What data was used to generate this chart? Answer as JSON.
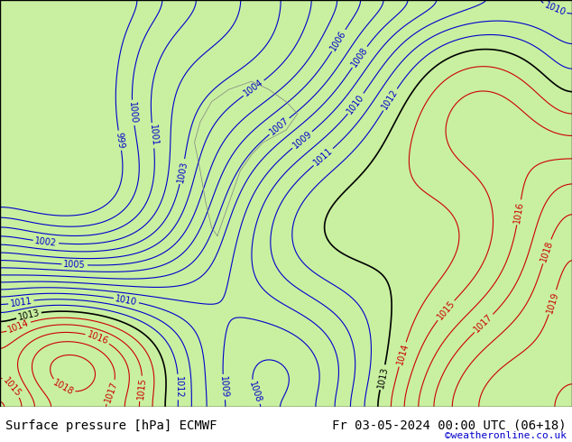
{
  "title_left": "Surface pressure [hPa] ECMWF",
  "title_right": "Fr 03-05-2024 00:00 UTC (06+18)",
  "credit": "©weatheronline.co.uk",
  "bg_color": "#c8f0a0",
  "land_color": "#c8f0a0",
  "sea_color": "#d0e8f8",
  "text_color_blue": "#0000cc",
  "text_color_red": "#cc0000",
  "text_color_black": "#000000",
  "bottom_bar_color": "#ffffff",
  "font_size_label": 9,
  "font_size_title": 10,
  "font_size_credit": 8
}
